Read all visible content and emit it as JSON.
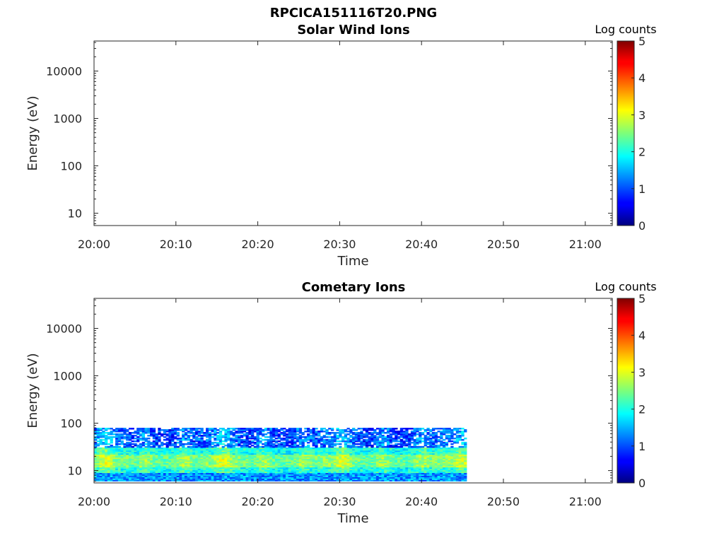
{
  "figure_title": "RPCICA151116T20.PNG",
  "chart_data": [
    {
      "type": "heatmap",
      "title": "Solar Wind Ions",
      "xlabel": "Time",
      "ylabel": "Energy (eV)",
      "x_ticks": [
        "20:00",
        "20:10",
        "20:20",
        "20:30",
        "20:40",
        "20:50",
        "21:00"
      ],
      "x_tick_minutes": [
        0,
        10,
        20,
        30,
        40,
        50,
        60
      ],
      "xlim_minutes": [
        0,
        63.3
      ],
      "y_scale": "log",
      "y_ticks": [
        "10",
        "100",
        "1000",
        "10000"
      ],
      "y_tick_values": [
        10,
        100,
        1000,
        10000
      ],
      "ylim": [
        5.5,
        43000
      ],
      "colorbar": {
        "label": "Log counts",
        "ticks": [
          "0",
          "1",
          "2",
          "3",
          "4",
          "5"
        ],
        "range": [
          0,
          5
        ],
        "colormap": "jet"
      },
      "data_extent_minutes": null,
      "data": "empty"
    },
    {
      "type": "heatmap",
      "title": "Cometary Ions",
      "xlabel": "Time",
      "ylabel": "Energy (eV)",
      "x_ticks": [
        "20:00",
        "20:10",
        "20:20",
        "20:30",
        "20:40",
        "20:50",
        "21:00"
      ],
      "x_tick_minutes": [
        0,
        10,
        20,
        30,
        40,
        50,
        60
      ],
      "xlim_minutes": [
        0,
        63.3
      ],
      "y_scale": "log",
      "y_ticks": [
        "10",
        "100",
        "1000",
        "10000"
      ],
      "y_tick_values": [
        10,
        100,
        1000,
        10000
      ],
      "ylim": [
        5.5,
        43000
      ],
      "colorbar": {
        "label": "Log counts",
        "ticks": [
          "0",
          "1",
          "2",
          "3",
          "4",
          "5"
        ],
        "range": [
          0,
          5
        ],
        "colormap": "jet"
      },
      "data_extent_minutes": [
        0,
        45.5
      ],
      "data_energy_range_ev": [
        6,
        80
      ],
      "data_summary": {
        "peak_band_ev": [
          12,
          22
        ],
        "peak_log_counts": 3.0,
        "low_band_ev": [
          6,
          9
        ],
        "high_band_ev": [
          30,
          80
        ],
        "high_band_log_counts": 1.0
      }
    }
  ]
}
